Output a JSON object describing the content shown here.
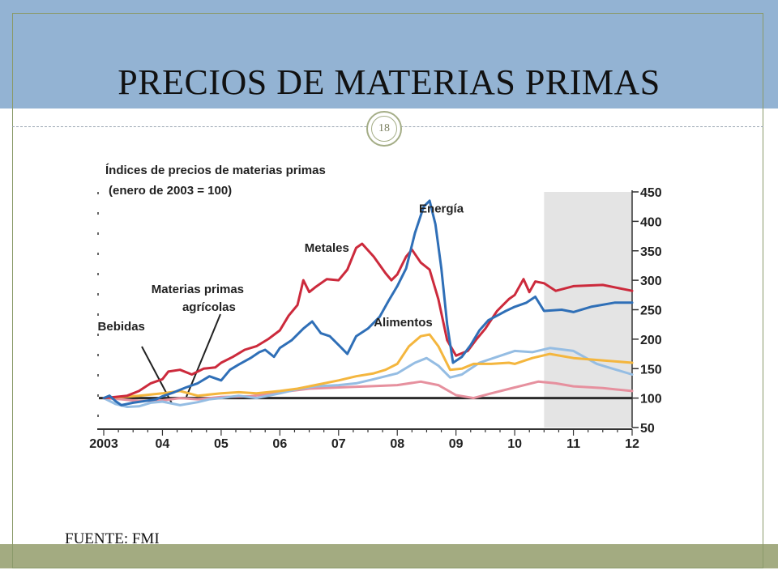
{
  "slide": {
    "title": "PRECIOS DE MATERIAS PRIMAS",
    "page_number": "18",
    "source": "FUENTE: FMI",
    "colors": {
      "header": "#93b3d3",
      "footer": "#a3ab81",
      "badge": "#a4ad86"
    }
  },
  "chart_data": {
    "type": "line",
    "title": "Índices de precios de materias primas",
    "subtitle": "(enero de 2003 = 100)",
    "x_tick_labels": [
      "2003",
      "04",
      "05",
      "06",
      "07",
      "08",
      "09",
      "10",
      "11",
      "12"
    ],
    "x_range": [
      2003.0,
      2012.0
    ],
    "ylim": [
      50,
      450
    ],
    "y_ticks": [
      50,
      100,
      150,
      200,
      250,
      300,
      350,
      400,
      450
    ],
    "y_axis_side": "right",
    "reference_line": 100,
    "shaded_region": {
      "from": 2010.5,
      "to": 2012.0,
      "meaning": "projection"
    },
    "series": [
      {
        "name": "Energía",
        "color": "#2f6fb7",
        "label_at": [
          2008.75,
          415
        ],
        "points": [
          [
            2003.0,
            100
          ],
          [
            2003.1,
            104
          ],
          [
            2003.2,
            95
          ],
          [
            2003.3,
            88
          ],
          [
            2003.5,
            92
          ],
          [
            2003.7,
            95
          ],
          [
            2003.9,
            98
          ],
          [
            2004.0,
            103
          ],
          [
            2004.2,
            110
          ],
          [
            2004.4,
            118
          ],
          [
            2004.6,
            125
          ],
          [
            2004.8,
            137
          ],
          [
            2005.0,
            130
          ],
          [
            2005.15,
            148
          ],
          [
            2005.3,
            157
          ],
          [
            2005.5,
            168
          ],
          [
            2005.65,
            178
          ],
          [
            2005.75,
            182
          ],
          [
            2005.9,
            170
          ],
          [
            2006.0,
            185
          ],
          [
            2006.2,
            198
          ],
          [
            2006.4,
            218
          ],
          [
            2006.55,
            230
          ],
          [
            2006.7,
            210
          ],
          [
            2006.85,
            205
          ],
          [
            2007.0,
            190
          ],
          [
            2007.15,
            175
          ],
          [
            2007.3,
            205
          ],
          [
            2007.5,
            218
          ],
          [
            2007.7,
            238
          ],
          [
            2007.85,
            265
          ],
          [
            2008.0,
            290
          ],
          [
            2008.15,
            320
          ],
          [
            2008.3,
            380
          ],
          [
            2008.45,
            425
          ],
          [
            2008.55,
            435
          ],
          [
            2008.65,
            395
          ],
          [
            2008.75,
            320
          ],
          [
            2008.85,
            225
          ],
          [
            2008.95,
            160
          ],
          [
            2009.1,
            170
          ],
          [
            2009.25,
            190
          ],
          [
            2009.4,
            215
          ],
          [
            2009.55,
            232
          ],
          [
            2009.7,
            240
          ],
          [
            2009.85,
            248
          ],
          [
            2010.0,
            255
          ],
          [
            2010.2,
            262
          ],
          [
            2010.35,
            272
          ],
          [
            2010.5,
            248
          ],
          [
            2010.8,
            250
          ],
          [
            2011.0,
            246
          ],
          [
            2011.3,
            255
          ],
          [
            2011.7,
            262
          ],
          [
            2012.0,
            262
          ]
        ]
      },
      {
        "name": "Metales",
        "color": "#cc2a3c",
        "label_at": [
          2006.8,
          348
        ],
        "points": [
          [
            2003.0,
            100
          ],
          [
            2003.2,
            102
          ],
          [
            2003.4,
            104
          ],
          [
            2003.6,
            112
          ],
          [
            2003.8,
            125
          ],
          [
            2004.0,
            132
          ],
          [
            2004.1,
            145
          ],
          [
            2004.3,
            148
          ],
          [
            2004.5,
            140
          ],
          [
            2004.7,
            150
          ],
          [
            2004.9,
            152
          ],
          [
            2005.0,
            160
          ],
          [
            2005.2,
            170
          ],
          [
            2005.4,
            182
          ],
          [
            2005.6,
            188
          ],
          [
            2005.8,
            200
          ],
          [
            2006.0,
            215
          ],
          [
            2006.15,
            240
          ],
          [
            2006.3,
            258
          ],
          [
            2006.4,
            300
          ],
          [
            2006.5,
            280
          ],
          [
            2006.6,
            288
          ],
          [
            2006.8,
            302
          ],
          [
            2007.0,
            300
          ],
          [
            2007.15,
            318
          ],
          [
            2007.3,
            355
          ],
          [
            2007.4,
            362
          ],
          [
            2007.6,
            340
          ],
          [
            2007.8,
            312
          ],
          [
            2007.9,
            300
          ],
          [
            2008.0,
            310
          ],
          [
            2008.15,
            340
          ],
          [
            2008.25,
            352
          ],
          [
            2008.4,
            330
          ],
          [
            2008.55,
            318
          ],
          [
            2008.7,
            268
          ],
          [
            2008.85,
            198
          ],
          [
            2009.0,
            172
          ],
          [
            2009.2,
            180
          ],
          [
            2009.35,
            200
          ],
          [
            2009.5,
            218
          ],
          [
            2009.7,
            248
          ],
          [
            2009.9,
            268
          ],
          [
            2010.0,
            275
          ],
          [
            2010.15,
            302
          ],
          [
            2010.25,
            280
          ],
          [
            2010.35,
            298
          ],
          [
            2010.5,
            295
          ],
          [
            2010.7,
            282
          ],
          [
            2011.0,
            290
          ],
          [
            2011.5,
            292
          ],
          [
            2012.0,
            282
          ]
        ]
      },
      {
        "name": "Alimentos",
        "color": "#f4b63e",
        "label_at": [
          2008.1,
          222
        ],
        "points": [
          [
            2003.0,
            100
          ],
          [
            2003.3,
            102
          ],
          [
            2003.6,
            104
          ],
          [
            2004.0,
            108
          ],
          [
            2004.3,
            112
          ],
          [
            2004.6,
            104
          ],
          [
            2005.0,
            108
          ],
          [
            2005.3,
            110
          ],
          [
            2005.6,
            108
          ],
          [
            2006.0,
            112
          ],
          [
            2006.3,
            116
          ],
          [
            2006.6,
            122
          ],
          [
            2007.0,
            130
          ],
          [
            2007.3,
            137
          ],
          [
            2007.6,
            142
          ],
          [
            2007.8,
            148
          ],
          [
            2008.0,
            158
          ],
          [
            2008.2,
            188
          ],
          [
            2008.4,
            205
          ],
          [
            2008.55,
            208
          ],
          [
            2008.7,
            188
          ],
          [
            2008.9,
            148
          ],
          [
            2009.1,
            150
          ],
          [
            2009.3,
            158
          ],
          [
            2009.6,
            158
          ],
          [
            2009.9,
            160
          ],
          [
            2010.0,
            158
          ],
          [
            2010.3,
            168
          ],
          [
            2010.6,
            175
          ],
          [
            2011.0,
            168
          ],
          [
            2011.5,
            164
          ],
          [
            2012.0,
            160
          ]
        ]
      },
      {
        "name": "Materias primas agrícolas",
        "color": "#95bde3",
        "label_at": [
          2004.6,
          285
        ],
        "points": [
          [
            2003.0,
            100
          ],
          [
            2003.2,
            90
          ],
          [
            2003.4,
            85
          ],
          [
            2003.6,
            86
          ],
          [
            2003.8,
            92
          ],
          [
            2004.0,
            94
          ],
          [
            2004.3,
            88
          ],
          [
            2004.6,
            93
          ],
          [
            2004.8,
            98
          ],
          [
            2005.0,
            100
          ],
          [
            2005.3,
            104
          ],
          [
            2005.6,
            100
          ],
          [
            2006.0,
            108
          ],
          [
            2006.3,
            115
          ],
          [
            2006.6,
            120
          ],
          [
            2007.0,
            122
          ],
          [
            2007.3,
            125
          ],
          [
            2007.6,
            132
          ],
          [
            2008.0,
            142
          ],
          [
            2008.3,
            160
          ],
          [
            2008.5,
            168
          ],
          [
            2008.7,
            155
          ],
          [
            2008.9,
            135
          ],
          [
            2009.1,
            140
          ],
          [
            2009.4,
            160
          ],
          [
            2009.7,
            170
          ],
          [
            2010.0,
            180
          ],
          [
            2010.3,
            178
          ],
          [
            2010.6,
            185
          ],
          [
            2011.0,
            180
          ],
          [
            2011.4,
            158
          ],
          [
            2012.0,
            140
          ]
        ]
      },
      {
        "name": "Bebidas",
        "color": "#e6909e",
        "label_at": [
          2003.3,
          215
        ],
        "points": [
          [
            2003.0,
            100
          ],
          [
            2003.3,
            98
          ],
          [
            2003.6,
            95
          ],
          [
            2004.0,
            96
          ],
          [
            2004.3,
            100
          ],
          [
            2004.6,
            98
          ],
          [
            2005.0,
            102
          ],
          [
            2005.5,
            103
          ],
          [
            2006.0,
            110
          ],
          [
            2006.5,
            116
          ],
          [
            2007.0,
            118
          ],
          [
            2007.5,
            120
          ],
          [
            2008.0,
            122
          ],
          [
            2008.4,
            128
          ],
          [
            2008.7,
            122
          ],
          [
            2009.0,
            105
          ],
          [
            2009.3,
            100
          ],
          [
            2009.6,
            108
          ],
          [
            2010.0,
            118
          ],
          [
            2010.4,
            128
          ],
          [
            2010.7,
            125
          ],
          [
            2011.0,
            120
          ],
          [
            2011.5,
            117
          ],
          [
            2012.0,
            112
          ]
        ]
      }
    ]
  }
}
